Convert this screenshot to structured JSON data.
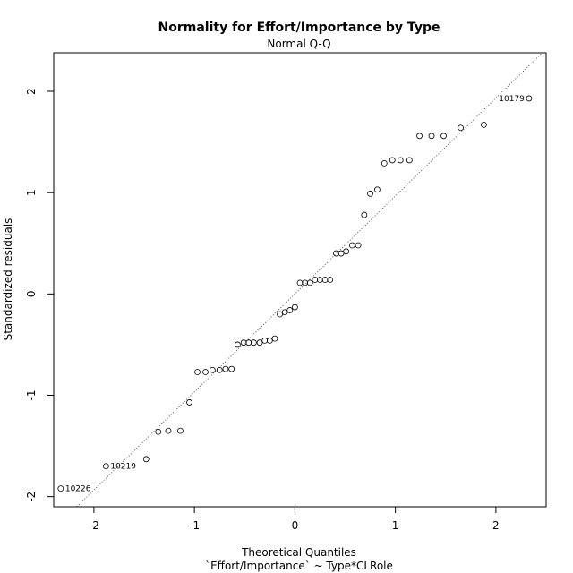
{
  "chart_data": {
    "type": "scatter",
    "title": "Normality for Effort/Importance by Type",
    "subtitle": "Normal Q-Q",
    "xlabel": "Theoretical Quantiles",
    "xlabel2": "`Effort/Importance` ~ Type*CLRole",
    "ylabel": "Standardized residuals",
    "xlim": [
      -2.4,
      2.5
    ],
    "ylim": [
      -2.1,
      2.38
    ],
    "xticks": [
      -2,
      -1,
      0,
      1,
      2
    ],
    "yticks": [
      -2,
      -1,
      0,
      1,
      2
    ],
    "grid": false,
    "reference_line": {
      "style": "dotted",
      "slope": 0.967,
      "intercept": 0.0
    },
    "point_labels": [
      {
        "text": "10226",
        "x": -2.33,
        "y": -1.92
      },
      {
        "text": "10219",
        "x": -1.88,
        "y": -1.7
      },
      {
        "text": "10179",
        "x": 2.33,
        "y": 1.93
      }
    ],
    "points": [
      [
        -2.33,
        -1.92
      ],
      [
        -1.88,
        -1.7
      ],
      [
        -1.48,
        -1.63
      ],
      [
        -1.36,
        -1.36
      ],
      [
        -1.26,
        -1.35
      ],
      [
        -1.14,
        -1.35
      ],
      [
        -1.05,
        -1.07
      ],
      [
        -0.97,
        -0.77
      ],
      [
        -0.89,
        -0.77
      ],
      [
        -0.82,
        -0.75
      ],
      [
        -0.75,
        -0.75
      ],
      [
        -0.69,
        -0.74
      ],
      [
        -0.63,
        -0.74
      ],
      [
        -0.57,
        -0.5
      ],
      [
        -0.51,
        -0.48
      ],
      [
        -0.46,
        -0.48
      ],
      [
        -0.41,
        -0.48
      ],
      [
        -0.35,
        -0.48
      ],
      [
        -0.3,
        -0.46
      ],
      [
        -0.25,
        -0.46
      ],
      [
        -0.2,
        -0.44
      ],
      [
        -0.15,
        -0.2
      ],
      [
        -0.1,
        -0.18
      ],
      [
        -0.05,
        -0.16
      ],
      [
        0.0,
        -0.13
      ],
      [
        0.05,
        0.11
      ],
      [
        0.1,
        0.11
      ],
      [
        0.15,
        0.11
      ],
      [
        0.2,
        0.14
      ],
      [
        0.25,
        0.14
      ],
      [
        0.3,
        0.14
      ],
      [
        0.35,
        0.14
      ],
      [
        0.41,
        0.4
      ],
      [
        0.46,
        0.4
      ],
      [
        0.51,
        0.42
      ],
      [
        0.57,
        0.48
      ],
      [
        0.63,
        0.48
      ],
      [
        0.69,
        0.78
      ],
      [
        0.75,
        0.99
      ],
      [
        0.82,
        1.03
      ],
      [
        0.89,
        1.29
      ],
      [
        0.97,
        1.32
      ],
      [
        1.05,
        1.32
      ],
      [
        1.14,
        1.32
      ],
      [
        1.24,
        1.56
      ],
      [
        1.36,
        1.56
      ],
      [
        1.48,
        1.56
      ],
      [
        1.65,
        1.64
      ],
      [
        1.88,
        1.67
      ],
      [
        2.33,
        1.93
      ]
    ]
  }
}
